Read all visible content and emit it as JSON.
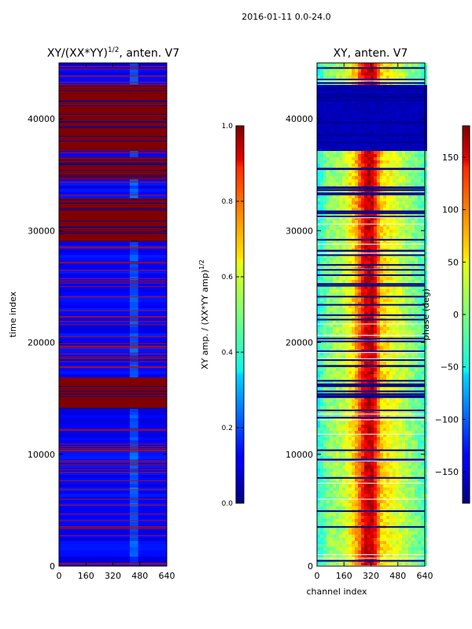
{
  "figure": {
    "suptitle": "2016-01-11 0.0-24.0"
  },
  "chart_data": [
    {
      "type": "heatmap",
      "title": "XY/(XX*YY)^1/2, anten. V7",
      "title_main": "XY/(XX*YY)",
      "title_exp": "1/2",
      "title_tail": ", anten. V7",
      "xlabel": "",
      "ylabel": "time index",
      "xlim": [
        0,
        640
      ],
      "ylim": [
        0,
        45000
      ],
      "x_ticks": [
        0,
        160,
        320,
        480,
        640
      ],
      "y_ticks": [
        0,
        10000,
        20000,
        30000,
        40000
      ],
      "colormap": "jet",
      "colorbar": {
        "label_main": "XY amp. / (XX*YY amp)",
        "label_exp": "1/2",
        "range": [
          0.0,
          1.0
        ],
        "ticks": [
          "0.0",
          "0.2",
          "0.4",
          "0.6",
          "0.8",
          "1.0"
        ]
      },
      "saturated_blocks": [
        [
          14000,
          17000
        ],
        [
          29000,
          33000
        ],
        [
          34500,
          36500
        ],
        [
          37000,
          43000
        ]
      ],
      "background_value": 0.12
    },
    {
      "type": "heatmap",
      "title": "XY, anten. V7",
      "xlabel": "channel index",
      "ylabel": "",
      "xlim": [
        0,
        640
      ],
      "ylim": [
        0,
        45000
      ],
      "x_ticks": [
        0,
        160,
        320,
        480,
        640
      ],
      "y_ticks": [
        0,
        10000,
        20000,
        30000,
        40000
      ],
      "colormap": "jet",
      "colorbar": {
        "label": "phase (deg)",
        "range": [
          -180,
          180
        ],
        "ticks": [
          "150",
          "100",
          "50",
          "0",
          "−50",
          "−100",
          "−150"
        ],
        "tick_values": [
          150,
          100,
          50,
          0,
          -50,
          -100,
          -150
        ]
      },
      "low_phase_block": [
        37000,
        43000
      ],
      "phase_profile": [
        {
          "channel": 0,
          "phase": -40
        },
        {
          "channel": 60,
          "phase": 0
        },
        {
          "channel": 160,
          "phase": 20
        },
        {
          "channel": 230,
          "phase": 70
        },
        {
          "channel": 290,
          "phase": 150
        },
        {
          "channel": 330,
          "phase": 160
        },
        {
          "channel": 380,
          "phase": 60
        },
        {
          "channel": 480,
          "phase": 30
        },
        {
          "channel": 640,
          "phase": -20
        }
      ]
    }
  ]
}
